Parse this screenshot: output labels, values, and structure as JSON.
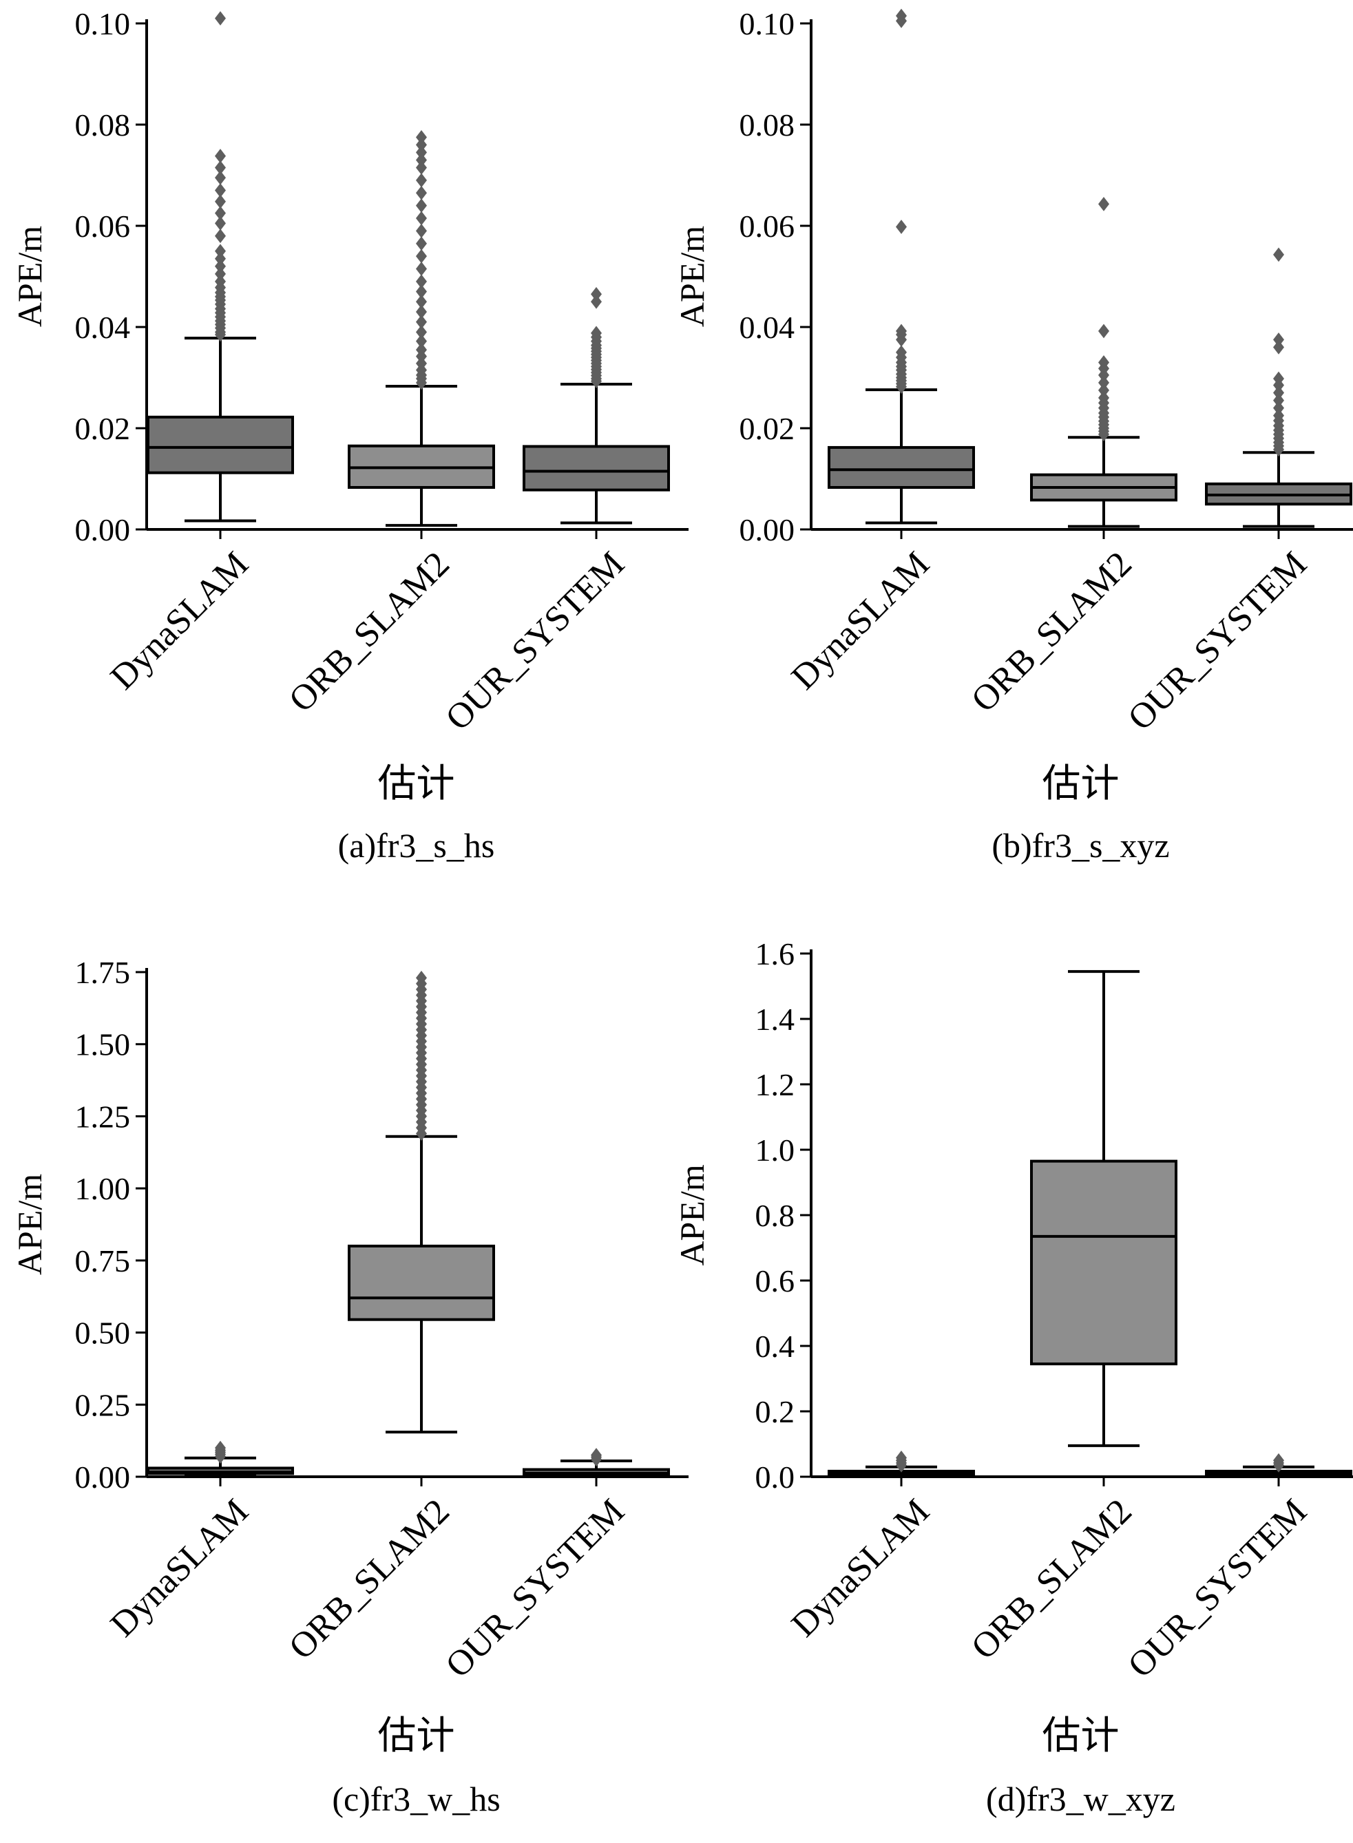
{
  "chart_data": [
    {
      "type": "box",
      "caption": "(a)fr3_s_hs",
      "xlabel": "估计",
      "ylabel": "APE/m",
      "ylim": [
        0,
        0.1
      ],
      "yticks": [
        0.0,
        0.02,
        0.04,
        0.06,
        0.08,
        0.1
      ],
      "ytick_labels": [
        "0.00",
        "0.02",
        "0.04",
        "0.06",
        "0.08",
        "0.10"
      ],
      "categories": [
        "DynaSLAM",
        "ORB_SLAM2",
        "OUR_SYSTEM"
      ],
      "boxes": [
        {
          "name": "DynaSLAM",
          "whisker_low": 0.0017,
          "q1": 0.0112,
          "median": 0.0162,
          "q3": 0.0222,
          "whisker_high": 0.0378,
          "fliers": [
            0.0385,
            0.039,
            0.0398,
            0.0405,
            0.0412,
            0.042,
            0.0428,
            0.0436,
            0.0445,
            0.0453,
            0.046,
            0.0468,
            0.0478,
            0.049,
            0.0505,
            0.052,
            0.0535,
            0.055,
            0.058,
            0.0605,
            0.0625,
            0.0648,
            0.067,
            0.0695,
            0.0715,
            0.0738,
            0.101
          ]
        },
        {
          "name": "ORB_SLAM2",
          "whisker_low": 0.0008,
          "q1": 0.0083,
          "median": 0.0122,
          "q3": 0.0165,
          "whisker_high": 0.0283,
          "fliers": [
            0.029,
            0.0298,
            0.0305,
            0.0315,
            0.0328,
            0.0342,
            0.0355,
            0.0372,
            0.039,
            0.041,
            0.043,
            0.045,
            0.047,
            0.049,
            0.0515,
            0.054,
            0.0565,
            0.059,
            0.0615,
            0.064,
            0.0665,
            0.069,
            0.0715,
            0.073,
            0.0745,
            0.076,
            0.0775
          ]
        },
        {
          "name": "OUR_SYSTEM",
          "whisker_low": 0.0013,
          "q1": 0.0078,
          "median": 0.0115,
          "q3": 0.0164,
          "whisker_high": 0.0287,
          "fliers": [
            0.0293,
            0.0298,
            0.0304,
            0.031,
            0.0316,
            0.0322,
            0.0328,
            0.0334,
            0.034,
            0.0346,
            0.0352,
            0.0358,
            0.0364,
            0.0372,
            0.038,
            0.0388,
            0.045,
            0.0465
          ]
        }
      ]
    },
    {
      "type": "box",
      "caption": "(b)fr3_s_xyz",
      "xlabel": "估计",
      "ylabel": "APE/m",
      "ylim": [
        0,
        0.1
      ],
      "yticks": [
        0.0,
        0.02,
        0.04,
        0.06,
        0.08,
        0.1
      ],
      "ytick_labels": [
        "0.00",
        "0.02",
        "0.04",
        "0.06",
        "0.08",
        "0.10"
      ],
      "categories": [
        "DynaSLAM",
        "ORB_SLAM2",
        "OUR_SYSTEM"
      ],
      "boxes": [
        {
          "name": "DynaSLAM",
          "whisker_low": 0.0013,
          "q1": 0.0083,
          "median": 0.0118,
          "q3": 0.0162,
          "whisker_high": 0.0276,
          "fliers": [
            0.0282,
            0.0288,
            0.0294,
            0.03,
            0.0307,
            0.0315,
            0.0322,
            0.033,
            0.034,
            0.035,
            0.0375,
            0.0385,
            0.0392,
            0.0598,
            0.1005,
            0.1015
          ]
        },
        {
          "name": "ORB_SLAM2",
          "whisker_low": 0.0006,
          "q1": 0.0058,
          "median": 0.0083,
          "q3": 0.0108,
          "whisker_high": 0.0182,
          "fliers": [
            0.0188,
            0.0194,
            0.02,
            0.0207,
            0.0214,
            0.0222,
            0.023,
            0.024,
            0.025,
            0.026,
            0.0275,
            0.029,
            0.0305,
            0.0318,
            0.033,
            0.0392,
            0.0643
          ]
        },
        {
          "name": "OUR_SYSTEM",
          "whisker_low": 0.0006,
          "q1": 0.005,
          "median": 0.0068,
          "q3": 0.009,
          "whisker_high": 0.0152,
          "fliers": [
            0.0158,
            0.0165,
            0.0172,
            0.018,
            0.0188,
            0.0196,
            0.0205,
            0.0215,
            0.0225,
            0.024,
            0.0255,
            0.027,
            0.0285,
            0.0298,
            0.036,
            0.0375,
            0.0543
          ]
        }
      ]
    },
    {
      "type": "box",
      "caption": "(c)fr3_w_hs",
      "xlabel": "估计",
      "ylabel": "APE/m",
      "ylim": [
        0,
        1.75
      ],
      "yticks": [
        0.0,
        0.25,
        0.5,
        0.75,
        1.0,
        1.25,
        1.5,
        1.75
      ],
      "ytick_labels": [
        "0.00",
        "0.25",
        "0.50",
        "0.75",
        "1.00",
        "1.25",
        "1.50",
        "1.75"
      ],
      "categories": [
        "DynaSLAM",
        "ORB_SLAM2",
        "OUR_SYSTEM"
      ],
      "boxes": [
        {
          "name": "DynaSLAM",
          "whisker_low": 0.002,
          "q1": 0.011,
          "median": 0.016,
          "q3": 0.03,
          "whisker_high": 0.065,
          "fliers": [
            0.07,
            0.078,
            0.085,
            0.092,
            0.1
          ]
        },
        {
          "name": "ORB_SLAM2",
          "whisker_low": 0.155,
          "q1": 0.545,
          "median": 0.62,
          "q3": 0.8,
          "whisker_high": 1.18,
          "fliers": [
            1.19,
            1.21,
            1.23,
            1.25,
            1.27,
            1.29,
            1.31,
            1.33,
            1.35,
            1.37,
            1.39,
            1.41,
            1.43,
            1.45,
            1.47,
            1.49,
            1.51,
            1.53,
            1.55,
            1.57,
            1.59,
            1.61,
            1.63,
            1.65,
            1.67,
            1.69,
            1.71,
            1.73
          ]
        },
        {
          "name": "OUR_SYSTEM",
          "whisker_low": 0.001,
          "q1": 0.008,
          "median": 0.012,
          "q3": 0.025,
          "whisker_high": 0.055,
          "fliers": [
            0.06,
            0.068,
            0.075
          ]
        }
      ]
    },
    {
      "type": "box",
      "caption": "(d)fr3_w_xyz",
      "xlabel": "估计",
      "ylabel": "APE/m",
      "ylim": [
        0,
        1.6
      ],
      "yticks": [
        0.0,
        0.2,
        0.4,
        0.6,
        0.8,
        1.0,
        1.2,
        1.4,
        1.6
      ],
      "ytick_labels": [
        "0.0",
        "0.2",
        "0.4",
        "0.6",
        "0.8",
        "1.0",
        "1.2",
        "1.4",
        "1.6"
      ],
      "categories": [
        "DynaSLAM",
        "ORB_SLAM2",
        "OUR_SYSTEM"
      ],
      "boxes": [
        {
          "name": "DynaSLAM",
          "whisker_low": 0.001,
          "q1": 0.006,
          "median": 0.01,
          "q3": 0.017,
          "whisker_high": 0.03,
          "fliers": [
            0.035,
            0.042,
            0.05,
            0.058
          ]
        },
        {
          "name": "ORB_SLAM2",
          "whisker_low": 0.095,
          "q1": 0.345,
          "median": 0.735,
          "q3": 0.965,
          "whisker_high": 1.545,
          "fliers": []
        },
        {
          "name": "OUR_SYSTEM",
          "whisker_low": 0.001,
          "q1": 0.006,
          "median": 0.01,
          "q3": 0.017,
          "whisker_high": 0.03,
          "fliers": [
            0.035,
            0.042,
            0.05
          ]
        }
      ]
    }
  ],
  "colors": {
    "dark_box": "#747474",
    "light_box": "#8e8e8e",
    "flier": "#5e5e5e",
    "axis": "#000000"
  }
}
